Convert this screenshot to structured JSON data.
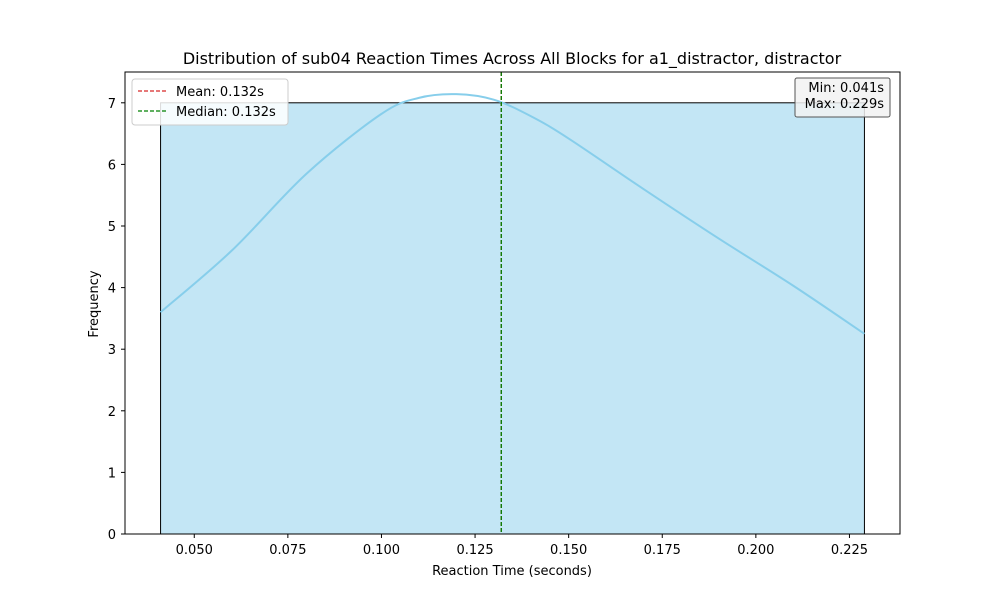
{
  "chart_data": {
    "type": "histogram",
    "title": "Distribution of sub04 Reaction Times Across All Blocks for a1_distractor, distractor",
    "xlabel": "Reaction Time (seconds)",
    "ylabel": "Frequency",
    "xlim": [
      0.0315,
      0.2385
    ],
    "ylim": [
      0,
      7.5
    ],
    "x_ticks": [
      0.05,
      0.075,
      0.1,
      0.125,
      0.15,
      0.175,
      0.2,
      0.225
    ],
    "x_tick_labels": [
      "0.050",
      "0.075",
      "0.100",
      "0.125",
      "0.150",
      "0.175",
      "0.200",
      "0.225"
    ],
    "y_ticks": [
      0,
      1,
      2,
      3,
      4,
      5,
      6,
      7
    ],
    "y_tick_labels": [
      "0",
      "1",
      "2",
      "3",
      "4",
      "5",
      "6",
      "7"
    ],
    "bins": [
      {
        "x0": 0.041,
        "x1": 0.229,
        "count": 7
      }
    ],
    "bar_fill": "#87ceeb",
    "bar_fill_opacity": 0.5,
    "kde": {
      "color": "#87ceeb",
      "x": [
        0.041,
        0.06,
        0.08,
        0.1,
        0.11,
        0.12,
        0.13,
        0.14,
        0.15,
        0.17,
        0.19,
        0.21,
        0.229
      ],
      "y": [
        3.6,
        4.6,
        5.85,
        6.82,
        7.08,
        7.14,
        7.05,
        6.78,
        6.42,
        5.6,
        4.8,
        4.03,
        3.25
      ]
    },
    "lines": [
      {
        "label": "Mean: 0.132s",
        "x": 0.132,
        "color": "#d62728",
        "style": "dashed"
      },
      {
        "label": "Median: 0.132s",
        "x": 0.132,
        "color": "#008000",
        "style": "dashed"
      }
    ],
    "legend_position": "top-left",
    "stats_box": {
      "position": "top-right",
      "lines": [
        "Min: 0.041s",
        "Max: 0.229s"
      ]
    },
    "grid": false
  }
}
